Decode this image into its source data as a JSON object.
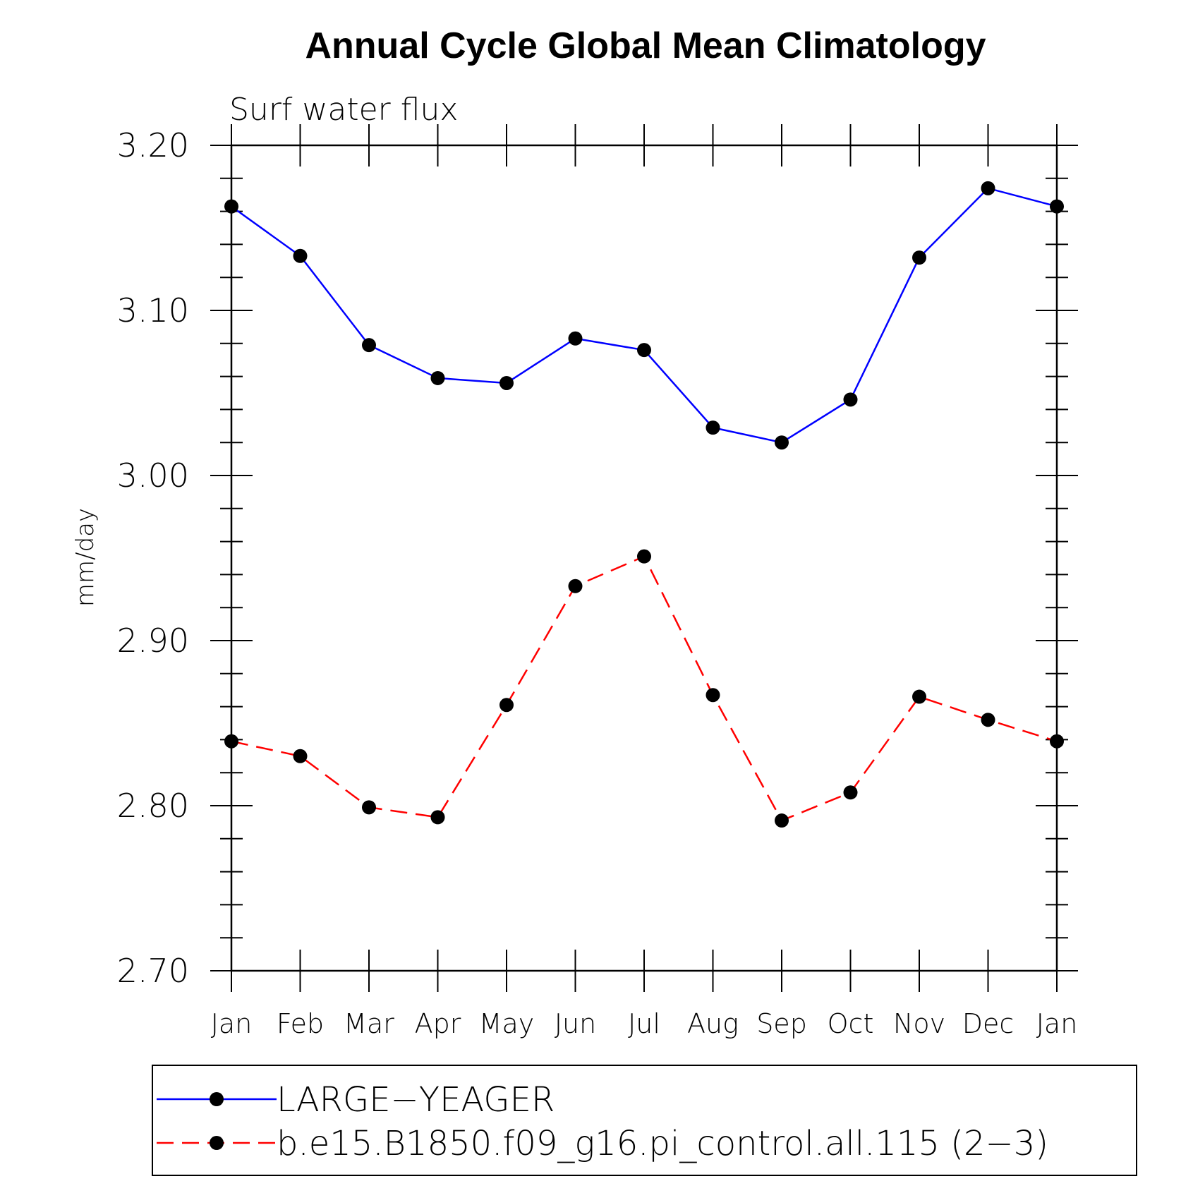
{
  "chart_data": {
    "type": "line",
    "title": "Annual Cycle Global Mean Climatology",
    "subtitle": "Surf water flux",
    "xlabel": "",
    "ylabel": "mm/day",
    "categories": [
      "Jan",
      "Feb",
      "Mar",
      "Apr",
      "May",
      "Jun",
      "Jul",
      "Aug",
      "Sep",
      "Oct",
      "Nov",
      "Dec",
      "Jan"
    ],
    "ylim": [
      2.7,
      3.2
    ],
    "yticks": [
      "3.20",
      "3.10",
      "3.00",
      "2.90",
      "2.80",
      "2.70"
    ],
    "grid": false,
    "legend_position": "bottom",
    "series": [
      {
        "name": "LARGE−YEAGER",
        "color": "#0000ff",
        "dash": "solid",
        "values": [
          3.163,
          3.133,
          3.079,
          3.059,
          3.056,
          3.083,
          3.076,
          3.029,
          3.02,
          3.046,
          3.132,
          3.174,
          3.163
        ]
      },
      {
        "name": "b.e15.B1850.f09_g16.pi_control.all.115 (2−3)",
        "color": "#ff0000",
        "dash": "dashed",
        "values": [
          2.839,
          2.83,
          2.799,
          2.793,
          2.861,
          2.933,
          2.951,
          2.867,
          2.791,
          2.808,
          2.866,
          2.852,
          2.839
        ]
      }
    ]
  }
}
